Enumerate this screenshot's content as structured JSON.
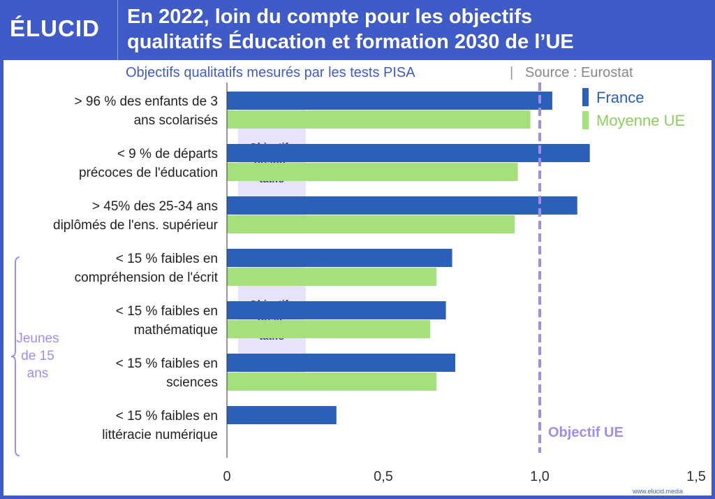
{
  "brand": {
    "logo": "ÉLUCID",
    "website": "www.elucid.media"
  },
  "header": {
    "title_line1": "En 2022, loin du compte pour les objectifs",
    "title_line2": "qualitatifs Éducation et formation 2030 de l’UE"
  },
  "subtitle": "Objectifs qualitatifs mesurés par les tests PISA",
  "source": "Source : Eurostat",
  "colors": {
    "france": "#2b5fb8",
    "ue": "#a6e07c",
    "header": "#3f5bc8",
    "target": "#9d8ff0",
    "group_box": "#e6e3fa",
    "group_text": "#3a2f9a"
  },
  "chart_data": {
    "type": "bar",
    "orientation": "horizontal",
    "categories": [
      [
        "> 96 % des enfants de 3",
        "ans scolarisés"
      ],
      [
        "< 9 % de départs",
        "précoces de l'éducation"
      ],
      [
        "> 45% des 25-34 ans",
        "diplômés de l'ens. supérieur"
      ],
      [
        "< 15 % faibles en",
        "compréhension de l'écrit"
      ],
      [
        "< 15 % faibles en",
        "mathématique"
      ],
      [
        "< 15 % faibles en",
        "sciences"
      ],
      [
        "< 15 % faibles en",
        "littéracie numérique"
      ]
    ],
    "series": [
      {
        "name": "France",
        "values": [
          1.04,
          1.16,
          1.12,
          0.72,
          0.7,
          0.73,
          0.35
        ]
      },
      {
        "name": "Moyenne UE",
        "values": [
          0.97,
          0.93,
          0.92,
          0.67,
          0.65,
          0.67,
          null
        ]
      }
    ],
    "xlim": [
      0,
      1.5
    ],
    "xticks": [
      "0",
      "0,5",
      "1,0",
      "1,5"
    ],
    "xtick_values": [
      0,
      0.5,
      1.0,
      1.5
    ],
    "legend_placement": "top-right",
    "target_line": {
      "value": 1.0,
      "label": "Objectif UE"
    },
    "groups": [
      {
        "label": [
          "Objectifs",
          "quanti-",
          "tatifs"
        ],
        "categories": [
          0,
          1,
          2
        ]
      },
      {
        "label": [
          "Objectifs",
          "quali-",
          "tatifs"
        ],
        "categories": [
          3,
          4,
          5
        ]
      }
    ],
    "brace": {
      "label": [
        "Jeunes",
        "de 15",
        "ans"
      ],
      "categories": [
        3,
        4,
        5,
        6
      ]
    }
  }
}
